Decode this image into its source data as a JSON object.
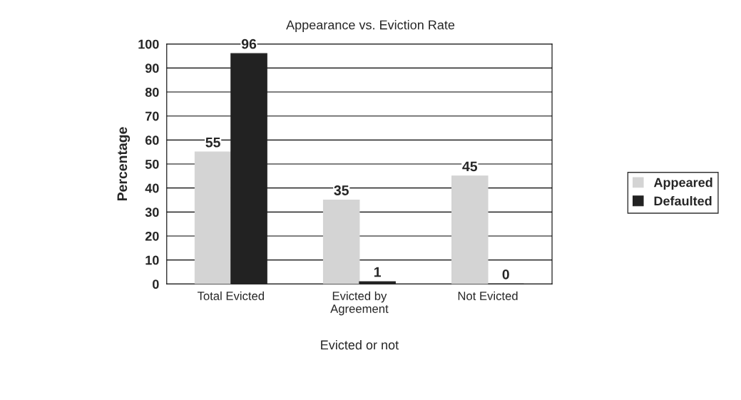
{
  "chart_data": {
    "type": "bar",
    "title": "Appearance vs. Eviction Rate",
    "xlabel": "Evicted or not",
    "ylabel": "Percentage",
    "categories": [
      "Total Evicted",
      "Evicted by\nAgreement",
      "Not Evicted"
    ],
    "series": [
      {
        "name": "Appeared",
        "color": "#d4d4d4",
        "values": [
          55,
          35,
          45
        ]
      },
      {
        "name": "Defaulted",
        "color": "#222222",
        "values": [
          96,
          1,
          0
        ]
      }
    ],
    "ylim": [
      0,
      100
    ],
    "yticks": [
      0,
      10,
      20,
      30,
      40,
      50,
      60,
      70,
      80,
      90,
      100
    ],
    "grid": "y",
    "legend": "right",
    "data_labels": true
  }
}
